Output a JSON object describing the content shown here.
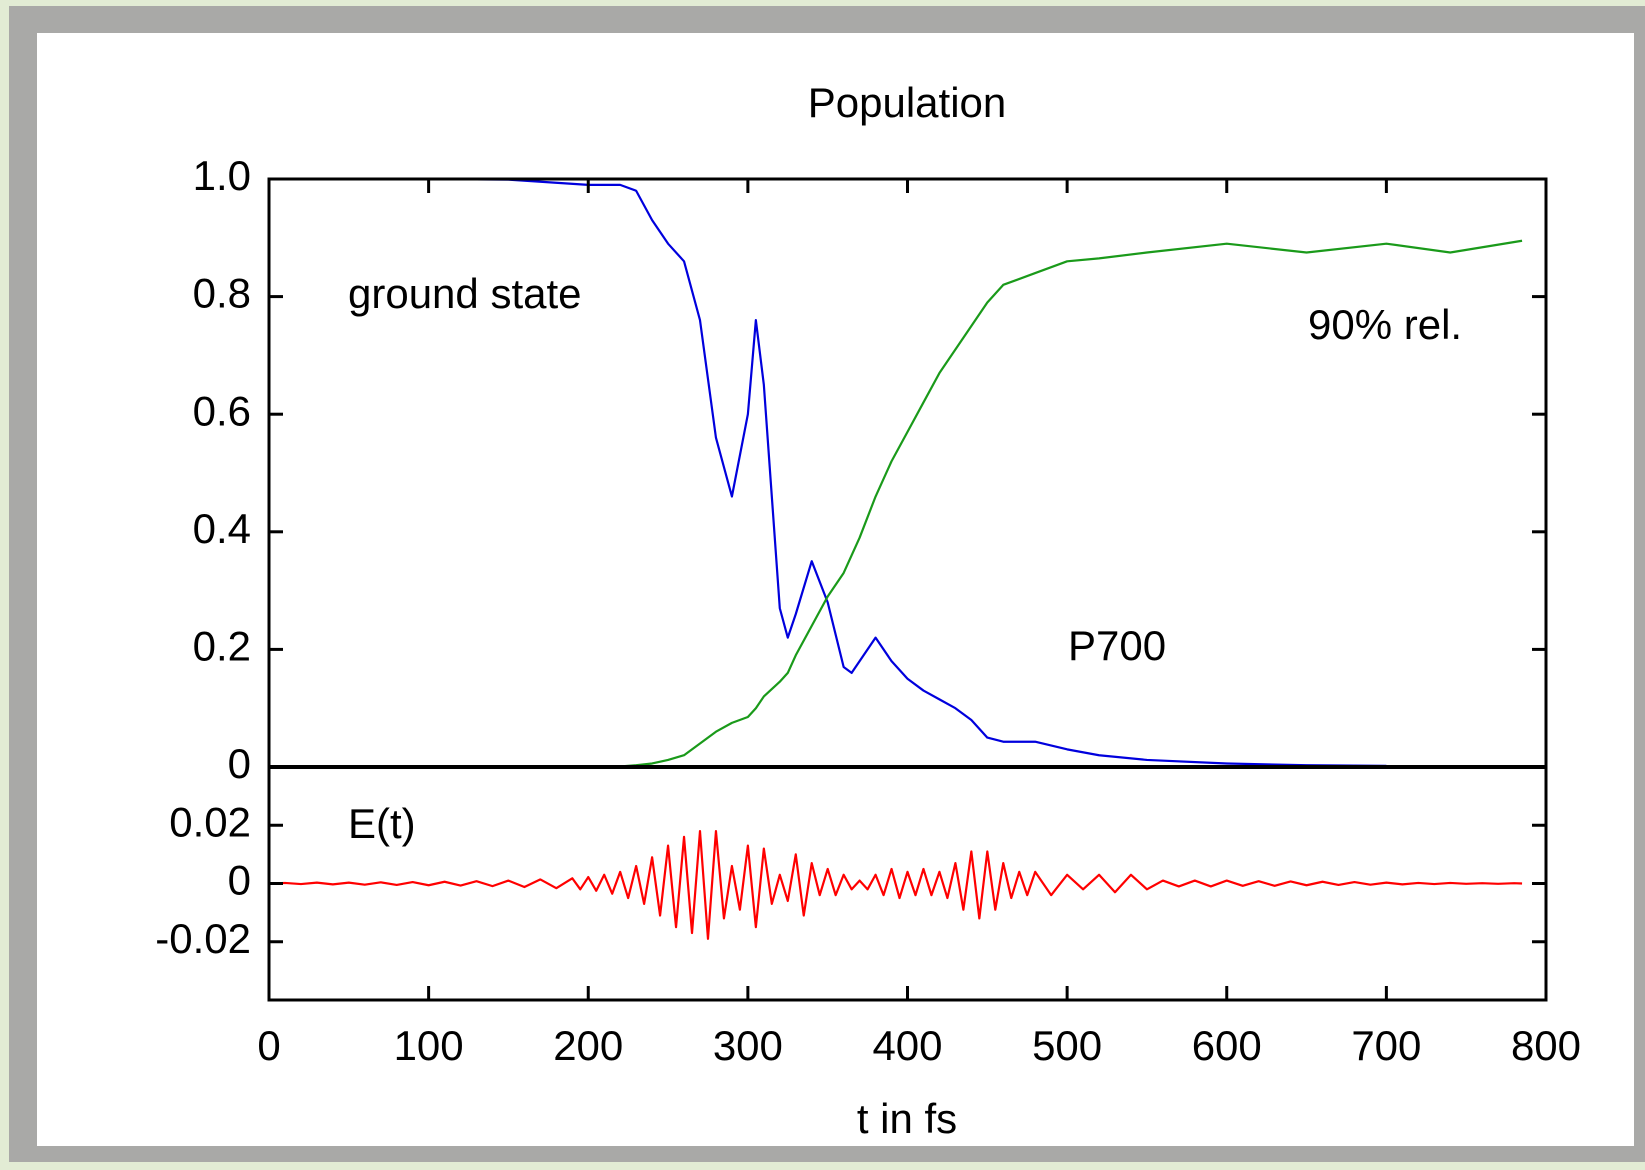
{
  "chart_data": [
    {
      "type": "line",
      "title": "Population",
      "x": [
        0,
        50,
        100,
        150,
        200,
        220,
        230,
        240,
        250,
        260,
        270,
        280,
        290,
        300,
        305,
        310,
        320,
        325,
        330,
        340,
        350,
        360,
        365,
        370,
        380,
        390,
        400,
        410,
        420,
        430,
        440,
        450,
        460,
        480,
        500,
        520,
        550,
        600,
        650,
        700,
        740,
        785
      ],
      "series": [
        {
          "name": "ground state",
          "color": "#0000dd",
          "values": [
            1,
            1,
            1,
            0.999,
            0.99,
            0.99,
            0.98,
            0.93,
            0.89,
            0.86,
            0.76,
            0.56,
            0.46,
            0.6,
            0.76,
            0.65,
            0.27,
            0.22,
            0.26,
            0.35,
            0.28,
            0.17,
            0.16,
            0.18,
            0.22,
            0.18,
            0.15,
            0.13,
            0.115,
            0.1,
            0.08,
            0.05,
            0.043,
            0.043,
            0.03,
            0.02,
            0.012,
            0.006,
            0.003,
            0.002,
            null,
            null
          ]
        },
        {
          "name": "P700",
          "color": "#1a9a1a",
          "values": [
            0,
            0,
            0,
            0,
            0,
            0.001,
            0.003,
            0.006,
            0.012,
            0.02,
            0.04,
            0.06,
            0.075,
            0.085,
            0.1,
            0.12,
            0.145,
            0.16,
            0.19,
            0.24,
            0.29,
            0.33,
            0.36,
            0.39,
            0.46,
            0.52,
            0.57,
            0.62,
            0.67,
            0.71,
            0.75,
            0.79,
            0.82,
            0.84,
            0.86,
            0.865,
            0.875,
            0.89,
            0.875,
            0.89,
            0.875,
            0.895
          ]
        }
      ],
      "annotations": [
        "90% rel."
      ],
      "xlim": [
        0,
        800
      ],
      "ylim": [
        0,
        1
      ],
      "yticks": [
        0,
        0.2,
        0.4,
        0.6,
        0.8,
        {
          "value": 1,
          "label": "1.0"
        }
      ]
    },
    {
      "type": "line",
      "x": [
        0,
        10,
        20,
        30,
        40,
        50,
        60,
        70,
        80,
        90,
        100,
        110,
        120,
        130,
        140,
        150,
        160,
        170,
        180,
        190,
        195,
        200,
        205,
        210,
        215,
        220,
        225,
        230,
        235,
        240,
        245,
        250,
        255,
        260,
        265,
        270,
        275,
        280,
        285,
        290,
        295,
        300,
        305,
        310,
        315,
        320,
        325,
        330,
        335,
        340,
        345,
        350,
        355,
        360,
        365,
        370,
        375,
        380,
        385,
        390,
        395,
        400,
        405,
        410,
        415,
        420,
        425,
        430,
        435,
        440,
        445,
        450,
        455,
        460,
        465,
        470,
        475,
        480,
        490,
        500,
        510,
        520,
        530,
        540,
        550,
        560,
        570,
        580,
        590,
        600,
        610,
        620,
        630,
        640,
        650,
        660,
        670,
        680,
        690,
        700,
        710,
        720,
        730,
        740,
        750,
        760,
        770,
        780,
        785
      ],
      "series": [
        {
          "name": "E(t)",
          "color": "#ff0000",
          "values": [
            0,
            0.0002,
            -0.0002,
            0.0003,
            -0.0003,
            0.0003,
            -0.0004,
            0.0004,
            -0.0005,
            0.0005,
            -0.0006,
            0.0006,
            -0.0007,
            0.0008,
            -0.0009,
            0.001,
            -0.0012,
            0.0014,
            -0.0016,
            0.0018,
            -0.002,
            0.0022,
            -0.0025,
            0.003,
            -0.0035,
            0.004,
            -0.005,
            0.006,
            -0.007,
            0.009,
            -0.011,
            0.013,
            -0.015,
            0.016,
            -0.017,
            0.018,
            -0.019,
            0.018,
            -0.012,
            0.006,
            -0.009,
            0.013,
            -0.015,
            0.012,
            -0.007,
            0.003,
            -0.006,
            0.01,
            -0.011,
            0.007,
            -0.004,
            0.005,
            -0.004,
            0.003,
            -0.002,
            0.001,
            -0.002,
            0.003,
            -0.004,
            0.005,
            -0.005,
            0.004,
            -0.004,
            0.005,
            -0.004,
            0.004,
            -0.005,
            0.007,
            -0.009,
            0.011,
            -0.012,
            0.011,
            -0.009,
            0.007,
            -0.005,
            0.004,
            -0.004,
            0.004,
            -0.004,
            0.003,
            -0.002,
            0.003,
            -0.003,
            0.003,
            -0.002,
            0.001,
            -0.001,
            0.001,
            -0.001,
            0.001,
            -0.0008,
            0.0008,
            -0.0008,
            0.0007,
            -0.0006,
            0.0006,
            -0.0005,
            0.0005,
            -0.0004,
            0.0003,
            -0.0003,
            0.0002,
            -0.0002,
            0.0002,
            -0.0001,
            0.0001,
            -0.0001,
            0.0001,
            0
          ]
        }
      ],
      "xlabel": "t in fs",
      "xlim": [
        0,
        800
      ],
      "xticks": [
        0,
        100,
        200,
        300,
        400,
        500,
        600,
        700,
        800
      ],
      "ylim": [
        -0.04,
        0.04
      ],
      "yticks": [
        -0.02,
        0,
        0.02
      ]
    }
  ]
}
